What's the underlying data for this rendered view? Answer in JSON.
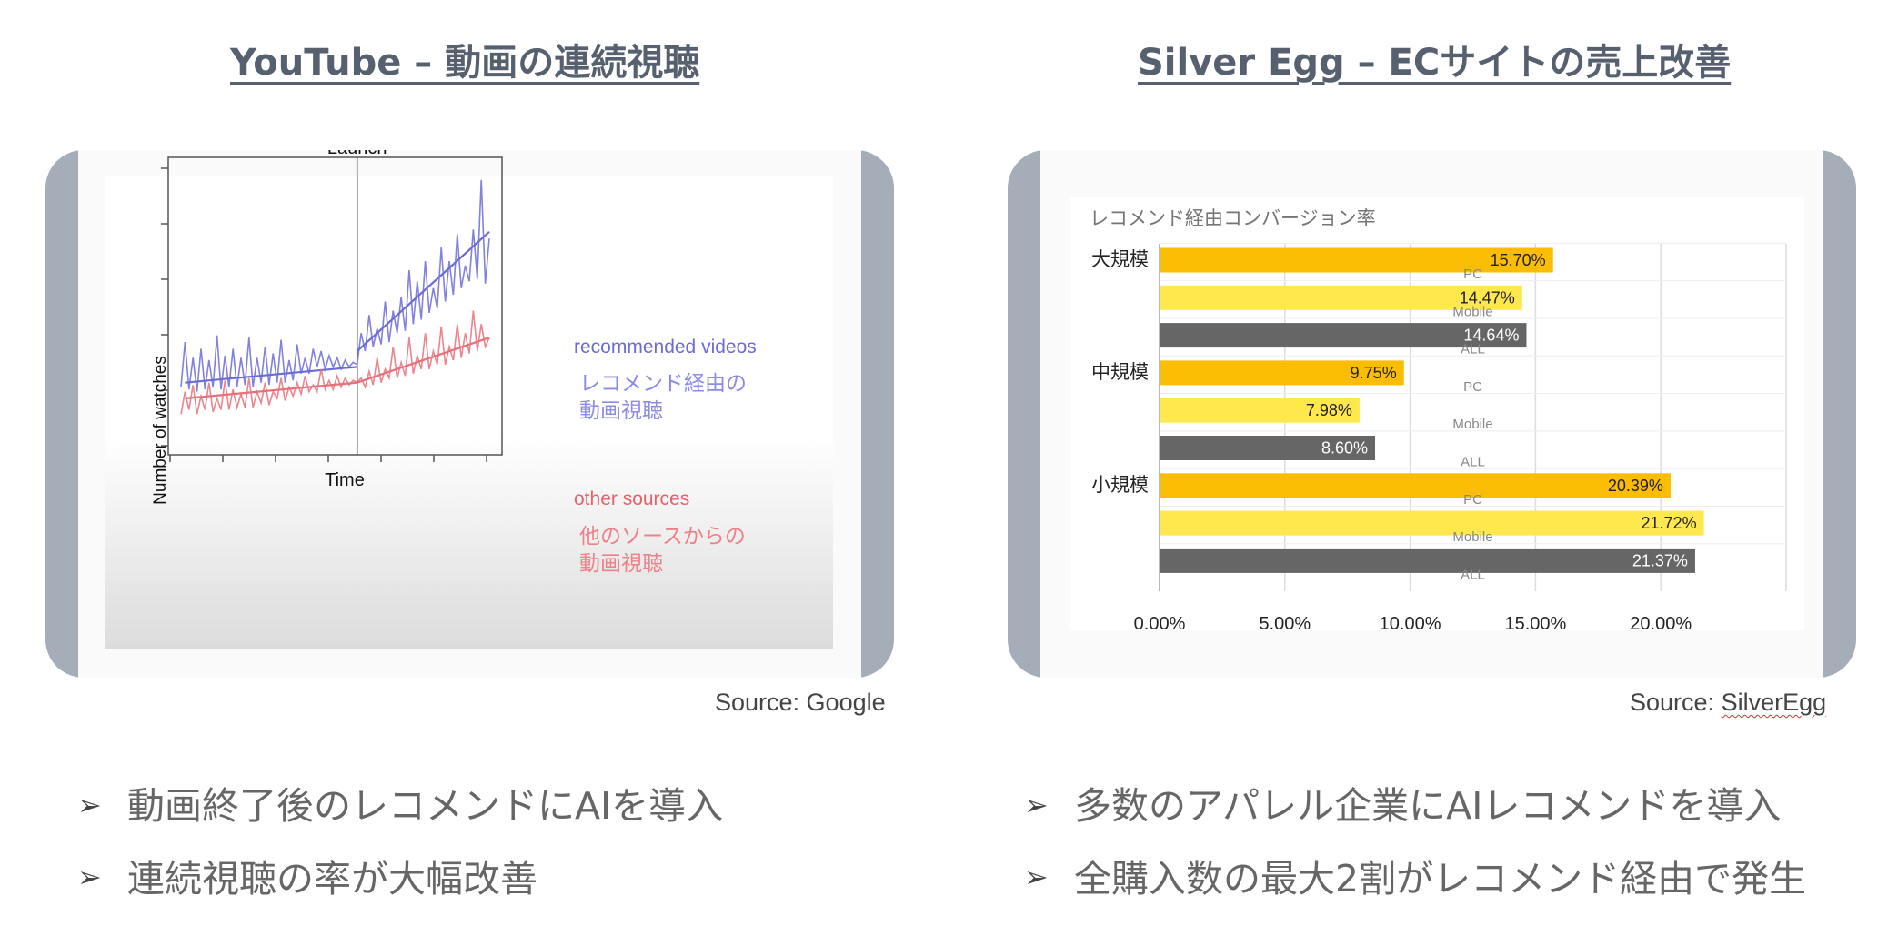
{
  "left": {
    "title": "YouTube – 動画の連続視聴",
    "source": "Source: Google",
    "bullets": [
      "動画終了後のレコメンドにAIを導入",
      "連続視聴の率が大幅改善"
    ]
  },
  "right": {
    "title": "Silver Egg – ECサイトの売上改善",
    "source_prefix": "Source: ",
    "source_link": "SilverEgg",
    "bullets": [
      "多数のアパレル企業にAIレコメンドを導入",
      "全購入数の最大2割がレコメンド経由で発生"
    ]
  },
  "chart_data": [
    {
      "type": "line",
      "title": "Launch",
      "xlabel": "Time",
      "ylabel": "Number of watches",
      "launch_marker_label": "Launch",
      "series": [
        {
          "name": "recommended videos",
          "annotation": "レコメンド経由の動画視聴",
          "annotation_lines": [
            "レコメンド経由の",
            "動画視聴"
          ],
          "color": "#6b6bd8",
          "values": [
            1.1,
            2.1,
            1.05,
            1.75,
            1.0,
            1.95,
            1.05,
            1.7,
            1.1,
            2.25,
            1.05,
            1.8,
            1.1,
            1.95,
            1.1,
            1.75,
            1.15,
            2.2,
            1.1,
            1.75,
            1.2,
            2.0,
            1.15,
            1.85,
            1.2,
            2.15,
            1.2,
            1.7,
            1.25,
            2.05,
            1.4,
            1.75,
            1.4,
            1.95,
            1.55,
            1.9,
            1.5,
            1.8,
            1.55,
            1.75,
            1.5,
            1.7,
            1.55,
            1.65,
            1.6,
            2.3,
            1.9,
            2.7,
            2.0,
            2.4,
            2.05,
            3.0,
            2.1,
            2.8,
            2.3,
            3.1,
            2.35,
            3.7,
            2.5,
            3.45,
            2.6,
            3.9,
            2.75,
            3.3,
            2.85,
            4.2,
            3.0,
            3.9,
            3.15,
            4.5,
            3.3,
            3.8,
            3.45,
            4.6,
            3.5,
            5.7,
            3.4,
            4.4
          ]
        },
        {
          "name": "other sources",
          "annotation": "他のソースからの動画視聴",
          "annotation_lines": [
            "他のソースからの",
            "動画視聴"
          ],
          "color": "#e8707a",
          "values": [
            0.5,
            1.0,
            0.6,
            1.15,
            0.5,
            0.9,
            0.6,
            1.2,
            0.55,
            0.85,
            0.6,
            1.25,
            0.6,
            1.05,
            0.65,
            0.95,
            0.65,
            1.3,
            0.65,
            1.0,
            0.75,
            1.2,
            0.7,
            1.0,
            0.85,
            1.3,
            0.8,
            1.1,
            0.9,
            1.2,
            0.95,
            1.35,
            1.0,
            1.15,
            1.0,
            1.5,
            1.05,
            1.25,
            1.05,
            1.35,
            1.1,
            1.3,
            1.15,
            1.25,
            1.2,
            1.3,
            1.1,
            1.45,
            1.15,
            1.75,
            1.2,
            1.5,
            1.3,
            2.0,
            1.3,
            1.65,
            1.35,
            2.2,
            1.4,
            1.8,
            1.5,
            2.3,
            1.5,
            1.9,
            1.6,
            2.45,
            1.6,
            2.0,
            1.7,
            2.5,
            1.75,
            2.3,
            1.85,
            2.8,
            1.9,
            2.5,
            2.0,
            2.2
          ]
        }
      ],
      "trend": {
        "recommended videos": {
          "pre": [
            1.2,
            1.55
          ],
          "post": [
            1.9,
            4.55
          ]
        },
        "other sources": {
          "pre": [
            0.85,
            1.2
          ],
          "post": [
            1.2,
            2.2
          ]
        }
      },
      "launch_index": 44,
      "ylim": [
        -0.2,
        6.0
      ]
    },
    {
      "type": "bar",
      "title": "レコメンド経由コンバージョン率",
      "groups": [
        "大規模",
        "中規模",
        "小規模"
      ],
      "bar_labels": [
        "PC",
        "Mobile",
        "ALL"
      ],
      "colors": {
        "PC": "#fbbc04",
        "Mobile": "#ffe84d",
        "ALL": "#666666"
      },
      "values": [
        [
          15.7,
          14.47,
          14.64
        ],
        [
          9.75,
          7.98,
          8.6
        ],
        [
          20.39,
          21.72,
          21.37
        ]
      ],
      "value_labels": [
        [
          "15.70%",
          "14.47%",
          "14.64%"
        ],
        [
          "9.75%",
          "7.98%",
          "8.60%"
        ],
        [
          "20.39%",
          "21.72%",
          "21.37%"
        ]
      ],
      "xticks": [
        "0.00%",
        "5.00%",
        "10.00%",
        "15.00%",
        "20.00%"
      ],
      "xlim": [
        0,
        25
      ]
    }
  ]
}
